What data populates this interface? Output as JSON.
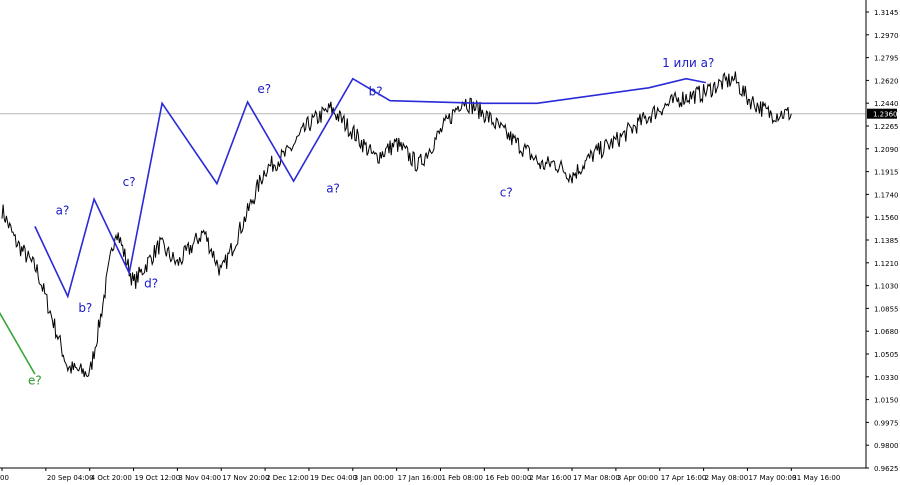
{
  "chart_data": {
    "type": "line",
    "x_labels": [
      "00",
      "20 Sep 04:00",
      "4 Oct 20:00",
      "19 Oct 12:00",
      "3 Nov 04:00",
      "17 Nov 20:00",
      "2 Dec 12:00",
      "19 Dec 04:00",
      "3 Jan 00:00",
      "17 Jan 16:00",
      "1 Feb 08:00",
      "16 Feb 00:00",
      "2 Mar 16:00",
      "17 Mar 08:00",
      "3 Apr 00:00",
      "17 Apr 16:00",
      "2 May 08:00",
      "17 May 00:00",
      "31 May 16:00"
    ],
    "y_ticks": [
      "1.3145",
      "1.2970",
      "1.2795",
      "1.2620",
      "1.2440",
      "1.2265",
      "1.2090",
      "1.1915",
      "1.1740",
      "1.1560",
      "1.1385",
      "1.1210",
      "1.1030",
      "1.0855",
      "1.0680",
      "1.0505",
      "1.0330",
      "1.0150",
      "0.9975",
      "0.9800",
      "0.9625"
    ],
    "ylim": [
      0.9625,
      1.3145
    ],
    "current_price": "1.2360",
    "current_price_value": 1.236,
    "price_series_x": [
      0,
      0.3,
      0.8,
      1.5,
      2,
      2.2,
      2.6,
      3,
      3.6,
      4,
      4.6,
      5,
      5.6,
      6,
      6.5,
      7,
      7.5,
      8,
      8.5,
      9,
      9.5,
      10,
      10.5,
      11,
      11.5,
      12,
      12.3,
      12.6,
      13,
      13.5,
      14,
      14.5,
      15,
      15.5,
      16,
      16.3,
      16.7,
      17,
      17.5,
      18
    ],
    "price_series_y": [
      1.162,
      1.138,
      1.115,
      1.04,
      1.035,
      1.07,
      1.148,
      1.105,
      1.135,
      1.12,
      1.145,
      1.113,
      1.16,
      1.193,
      1.205,
      1.228,
      1.24,
      1.222,
      1.202,
      1.213,
      1.196,
      1.222,
      1.247,
      1.236,
      1.22,
      1.206,
      1.196,
      1.198,
      1.188,
      1.205,
      1.215,
      1.228,
      1.24,
      1.248,
      1.252,
      1.258,
      1.263,
      1.248,
      1.236,
      1.236
    ],
    "wave_lines": [
      {
        "color": "#2a2ad8",
        "x": [
          0.75,
          1.5,
          2.1,
          2.9,
          3.65,
          4.9,
          5.6,
          6.65,
          8.0,
          8.85,
          10.95,
          12.2,
          14.75,
          15.6,
          16.05
        ],
        "y": [
          1.149,
          1.095,
          1.17,
          1.113,
          1.244,
          1.182,
          1.245,
          1.184,
          1.263,
          1.246,
          1.244,
          1.244,
          1.256,
          1.263,
          1.26
        ]
      },
      {
        "color": "#3aa53a",
        "x": [
          -0.1,
          0.75
        ],
        "y": [
          1.085,
          1.035
        ]
      }
    ],
    "wave_labels": [
      {
        "text": "e?",
        "x": 0.75,
        "y": 1.027,
        "color": "#2a9a2a"
      },
      {
        "text": "a?",
        "x": 1.38,
        "y": 1.158,
        "color": "#1a1ac8"
      },
      {
        "text": "b?",
        "x": 1.9,
        "y": 1.083,
        "color": "#1a1ac8"
      },
      {
        "text": "c?",
        "x": 2.9,
        "y": 1.18,
        "color": "#1a1ac8"
      },
      {
        "text": "d?",
        "x": 3.4,
        "y": 1.102,
        "color": "#1a1ac8"
      },
      {
        "text": "e?",
        "x": 5.98,
        "y": 1.252,
        "color": "#1a1ac8"
      },
      {
        "text": "a?",
        "x": 7.55,
        "y": 1.175,
        "color": "#1a1ac8"
      },
      {
        "text": "b?",
        "x": 8.52,
        "y": 1.25,
        "color": "#1a1ac8"
      },
      {
        "text": "c?",
        "x": 11.5,
        "y": 1.172,
        "color": "#1a1ac8"
      },
      {
        "text": "1 или a?",
        "x": 15.65,
        "y": 1.272,
        "color": "#1a1ac8"
      }
    ]
  }
}
